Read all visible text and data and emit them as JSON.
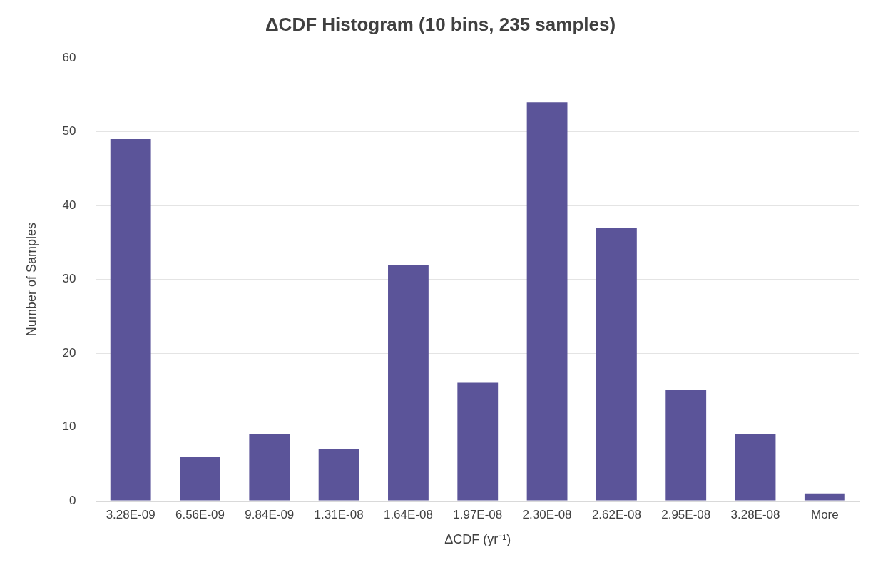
{
  "chart_data": {
    "type": "bar",
    "title": "ΔCDF Histogram (10 bins, 235 samples)",
    "xlabel": "ΔCDF (yr⁻¹)",
    "ylabel": "Number of Samples",
    "categories": [
      "3.28E-09",
      "6.56E-09",
      "9.84E-09",
      "1.31E-08",
      "1.64E-08",
      "1.97E-08",
      "2.30E-08",
      "2.62E-08",
      "2.95E-08",
      "3.28E-08",
      "More"
    ],
    "values": [
      49,
      6,
      9,
      7,
      32,
      16,
      54,
      37,
      15,
      9,
      1
    ],
    "color": "#5b5499",
    "ylim": [
      0,
      60
    ],
    "yticks": [
      0,
      10,
      20,
      30,
      40,
      50,
      60
    ],
    "grid": "y",
    "legend": false
  }
}
